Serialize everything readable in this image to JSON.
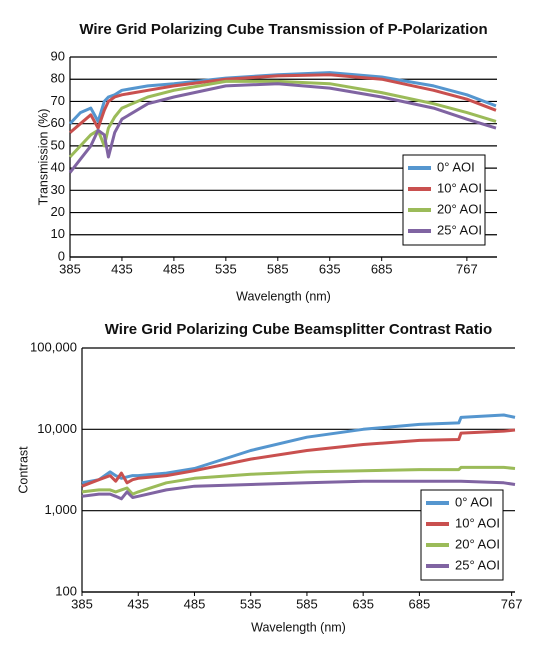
{
  "chart_data": [
    {
      "type": "line",
      "title": "Wire Grid Polarizing Cube Transmission of P-Polarization",
      "x_label": "Wavelength (nm)",
      "y_label": "Transmission (%)",
      "x": [
        385,
        395,
        405,
        412,
        418,
        422,
        428,
        435,
        460,
        485,
        535,
        585,
        635,
        685,
        735,
        767,
        795
      ],
      "series": [
        {
          "name": "0° AOI",
          "color": "#5596cf",
          "values": [
            60,
            65,
            67,
            61,
            70,
            72,
            73,
            75,
            77,
            78,
            80.5,
            82,
            83,
            81,
            77,
            73,
            68
          ]
        },
        {
          "name": "10° AOI",
          "color": "#c9504f",
          "values": [
            56,
            60,
            64,
            58,
            66,
            70,
            72,
            73,
            75,
            77,
            80,
            81.5,
            82,
            80,
            75,
            71,
            66
          ]
        },
        {
          "name": "20° AOI",
          "color": "#9bbb59",
          "values": [
            45,
            50,
            55,
            57,
            50,
            58,
            63,
            67,
            72,
            75,
            79,
            79,
            78,
            74,
            69,
            65,
            61
          ]
        },
        {
          "name": "25° AOI",
          "color": "#8064a2",
          "values": [
            38,
            44,
            50,
            57,
            55,
            45,
            56,
            62,
            69,
            72,
            77,
            78,
            76,
            72,
            67,
            62,
            58
          ]
        }
      ],
      "xlim": [
        385,
        796
      ],
      "xticks": [
        385,
        435,
        485,
        535,
        585,
        635,
        685,
        767
      ],
      "ylim": [
        0,
        90
      ],
      "yticks": [
        0,
        10,
        20,
        30,
        40,
        50,
        60,
        70,
        80,
        90
      ],
      "grid": true,
      "legend": "lower right"
    },
    {
      "type": "line",
      "title": "Wire Grid Polarizing Cube Beamsplitter Contrast Ratio",
      "x_label": "Wavelength (nm)",
      "y_label": "Contrast",
      "x": [
        385,
        400,
        410,
        415,
        420,
        425,
        430,
        435,
        460,
        485,
        535,
        585,
        635,
        685,
        720,
        722,
        760,
        770
      ],
      "series": [
        {
          "name": "0° AOI",
          "color": "#5596cf",
          "values": [
            2200,
            2400,
            3000,
            2700,
            2500,
            2600,
            2700,
            2700,
            2900,
            3300,
            5500,
            8000,
            10000,
            11500,
            12000,
            14000,
            15000,
            14000
          ]
        },
        {
          "name": "10° AOI",
          "color": "#c9504f",
          "values": [
            2000,
            2400,
            2700,
            2300,
            2900,
            2200,
            2400,
            2500,
            2700,
            3100,
            4300,
            5500,
            6500,
            7300,
            7500,
            9000,
            9500,
            9800
          ]
        },
        {
          "name": "20° AOI",
          "color": "#9bbb59",
          "values": [
            1700,
            1800,
            1800,
            1700,
            1800,
            1900,
            1600,
            1700,
            2200,
            2500,
            2800,
            3000,
            3100,
            3200,
            3200,
            3400,
            3400,
            3300
          ]
        },
        {
          "name": "25° AOI",
          "color": "#8064a2",
          "values": [
            1500,
            1600,
            1600,
            1500,
            1400,
            1700,
            1450,
            1500,
            1800,
            2000,
            2100,
            2200,
            2300,
            2300,
            2300,
            2300,
            2200,
            2100
          ]
        }
      ],
      "xlim": [
        385,
        770
      ],
      "xticks": [
        385,
        435,
        485,
        535,
        585,
        635,
        685,
        767
      ],
      "ylim": [
        100,
        100000
      ],
      "yscale": "log",
      "yticks": [
        100,
        {
          "value": 1000,
          "label": "1,000"
        },
        {
          "value": 10000,
          "label": "10,000"
        },
        {
          "value": 100000,
          "label": "100,000"
        }
      ],
      "grid": true,
      "legend": "lower right"
    }
  ]
}
